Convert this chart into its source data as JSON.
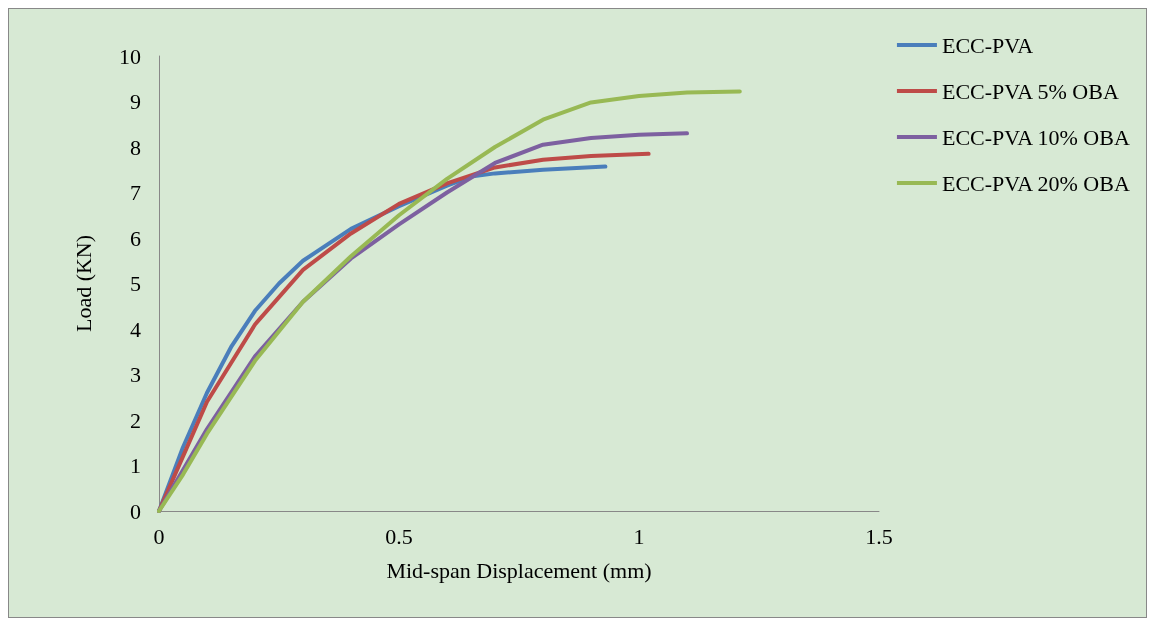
{
  "chart_data": {
    "type": "line",
    "xlabel": "Mid-span Displacement (mm)",
    "ylabel": "Load (KN)",
    "xlim": [
      0,
      1.5
    ],
    "xticks": [
      0,
      0.5,
      1,
      1.5
    ],
    "ylim": [
      0,
      10
    ],
    "yticks": [
      0,
      1,
      2,
      3,
      4,
      5,
      6,
      7,
      8,
      9,
      10
    ],
    "grid": false,
    "legend": "right",
    "marker": "none",
    "series": [
      {
        "name": "ECC-PVA",
        "color": "#4a7ebb",
        "x": [
          0,
          0.05,
          0.1,
          0.15,
          0.2,
          0.25,
          0.3,
          0.4,
          0.5,
          0.6,
          0.65,
          0.7,
          0.8,
          0.93
        ],
        "values": [
          0,
          1.4,
          2.6,
          3.6,
          4.4,
          5.0,
          5.5,
          6.2,
          6.7,
          7.15,
          7.35,
          7.42,
          7.5,
          7.57
        ]
      },
      {
        "name": "ECC-PVA 5% OBA",
        "color": "#be4b48",
        "x": [
          0,
          0.05,
          0.1,
          0.2,
          0.3,
          0.4,
          0.5,
          0.6,
          0.7,
          0.8,
          0.9,
          1.02
        ],
        "values": [
          0,
          1.2,
          2.4,
          4.1,
          5.3,
          6.1,
          6.75,
          7.2,
          7.55,
          7.72,
          7.8,
          7.85
        ]
      },
      {
        "name": "ECC-PVA 10% OBA",
        "color": "#7d60a0",
        "x": [
          0,
          0.05,
          0.1,
          0.2,
          0.3,
          0.4,
          0.5,
          0.6,
          0.7,
          0.8,
          0.9,
          1.0,
          1.1
        ],
        "values": [
          0,
          0.9,
          1.8,
          3.4,
          4.6,
          5.55,
          6.3,
          7.0,
          7.65,
          8.05,
          8.2,
          8.27,
          8.3
        ]
      },
      {
        "name": "ECC-PVA 20% OBA",
        "color": "#98b954",
        "x": [
          0,
          0.05,
          0.1,
          0.2,
          0.3,
          0.4,
          0.5,
          0.6,
          0.7,
          0.8,
          0.9,
          1.0,
          1.1,
          1.21
        ],
        "values": [
          0,
          0.8,
          1.7,
          3.3,
          4.6,
          5.6,
          6.5,
          7.3,
          8.0,
          8.6,
          8.98,
          9.12,
          9.2,
          9.22
        ]
      }
    ]
  }
}
